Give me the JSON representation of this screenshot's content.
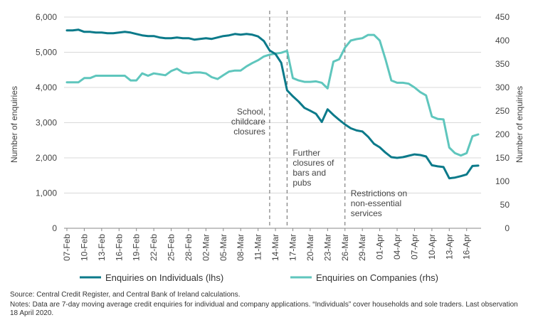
{
  "chart_data": {
    "type": "line",
    "title": "",
    "ylabel_left": "Number of enquiries",
    "ylabel_right": "Number of enquiries",
    "ylim_left": [
      0,
      6000
    ],
    "ylim_right": [
      0,
      450
    ],
    "yticks_left": [
      "0",
      "1,000",
      "2,000",
      "3,000",
      "4,000",
      "5,000",
      "6,000"
    ],
    "yticks_right": [
      "0",
      "50",
      "100",
      "150",
      "200",
      "250",
      "300",
      "350",
      "400",
      "450"
    ],
    "x_tick_labels": [
      "07-Feb",
      "10-Feb",
      "13-Feb",
      "16-Feb",
      "19-Feb",
      "22-Feb",
      "25-Feb",
      "28-Feb",
      "02-Mar",
      "05-Mar",
      "08-Mar",
      "11-Mar",
      "14-Mar",
      "17-Mar",
      "20-Mar",
      "23-Mar",
      "26-Mar",
      "29-Mar",
      "01-Apr",
      "04-Apr",
      "07-Apr",
      "10-Apr",
      "13-Apr",
      "16-Apr"
    ],
    "day_count": 72,
    "series": [
      {
        "name": "Enquiries on Individuals (lhs)",
        "axis": "left",
        "color": "#0b7a8a",
        "values": [
          5620,
          5620,
          5640,
          5580,
          5580,
          5560,
          5560,
          5540,
          5540,
          5560,
          5580,
          5560,
          5520,
          5480,
          5460,
          5460,
          5420,
          5400,
          5400,
          5420,
          5400,
          5400,
          5360,
          5380,
          5400,
          5380,
          5420,
          5460,
          5480,
          5520,
          5500,
          5520,
          5500,
          5450,
          5320,
          5050,
          4950,
          4700,
          3920,
          3750,
          3600,
          3420,
          3340,
          3250,
          3020,
          3380,
          3220,
          3080,
          2950,
          2840,
          2780,
          2750,
          2600,
          2400,
          2300,
          2150,
          2020,
          2000,
          2020,
          2060,
          2100,
          2080,
          2040,
          1790,
          1760,
          1740,
          1420,
          1440,
          1480,
          1530,
          1770,
          1780
        ]
      },
      {
        "name": "Enquiries on Companies (rhs)",
        "axis": "right",
        "color": "#5fc6bd",
        "values": [
          311,
          311,
          311,
          320,
          320,
          325,
          325,
          325,
          325,
          325,
          325,
          315,
          315,
          330,
          325,
          330,
          328,
          326,
          335,
          340,
          332,
          330,
          332,
          332,
          330,
          322,
          318,
          326,
          334,
          336,
          336,
          345,
          352,
          358,
          366,
          370,
          372,
          374,
          378,
          320,
          315,
          312,
          312,
          313,
          310,
          298,
          355,
          360,
          385,
          400,
          403,
          405,
          412,
          412,
          400,
          360,
          315,
          310,
          310,
          308,
          300,
          290,
          283,
          238,
          233,
          232,
          172,
          160,
          155,
          160,
          196,
          200
        ]
      }
    ],
    "annotations": [
      {
        "day": 35,
        "lines": [
          "School,",
          "childcare",
          "closures"
        ]
      },
      {
        "day": 38,
        "lines": [
          "Further",
          "closures of",
          "bars and",
          "pubs"
        ]
      },
      {
        "day": 48,
        "lines": [
          "Restrictions on",
          "non-essential",
          "services"
        ]
      }
    ]
  },
  "source_text": "Source:  Central Credit Register, and Central Bank of Ireland calculations.",
  "notes_text": "Notes: Data are 7-day moving average credit enquiries for individual and company applications. “Individuals” cover households and sole traders. Last observation 18 April 2020."
}
